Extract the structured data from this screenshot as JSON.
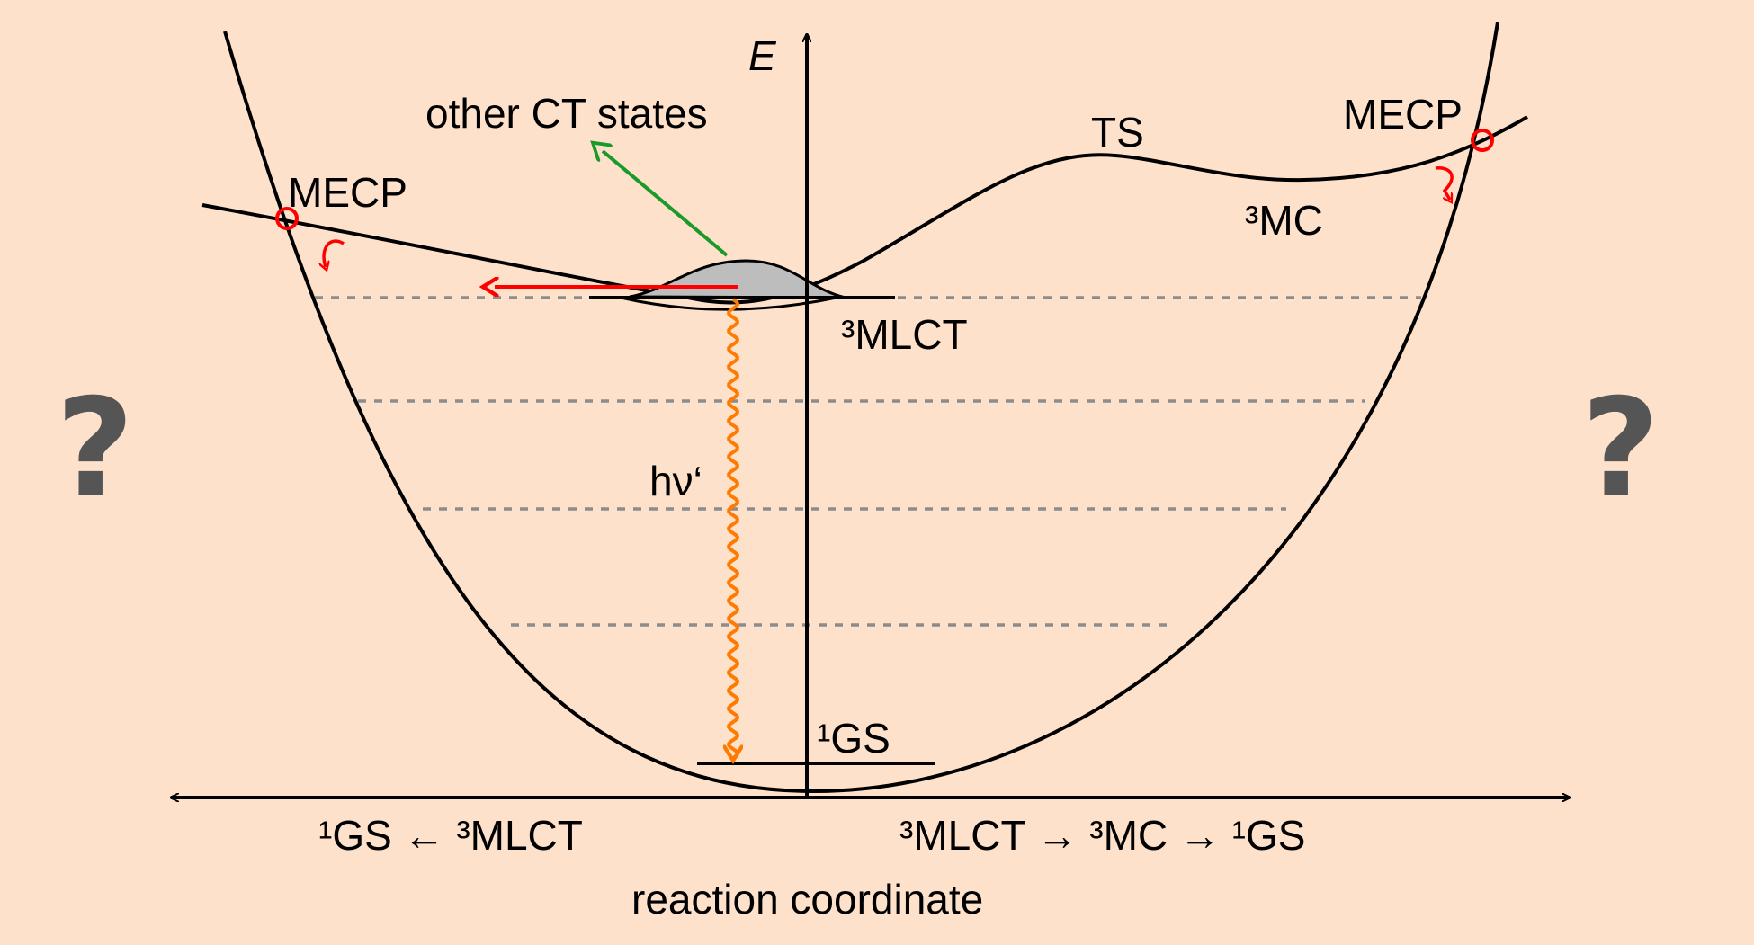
{
  "axes": {
    "y_label": "E",
    "x_label": "reaction coordinate",
    "left_direction_label": "¹GS ← ³MLCT",
    "right_direction_label": "³MLCT → ³MC → ¹GS"
  },
  "states": {
    "mecp_left": "MECP",
    "mecp_right": "MECP",
    "ts": "TS",
    "mc": "³MC",
    "mlct": "³MLCT",
    "gs": "¹GS"
  },
  "annotations": {
    "other_ct": "other CT states",
    "emission": "hν‘",
    "unknown_left": "?",
    "unknown_right": "?"
  },
  "colors": {
    "background": "#fde1cb",
    "curve": "#000000",
    "red_arrow": "#ff0000",
    "green_arrow": "#1a9a2a",
    "emission_wave": "#ff7a00",
    "dashed_levels": "#8c8c8c",
    "population": "#bdbdbd",
    "question_mark": "#555555"
  }
}
